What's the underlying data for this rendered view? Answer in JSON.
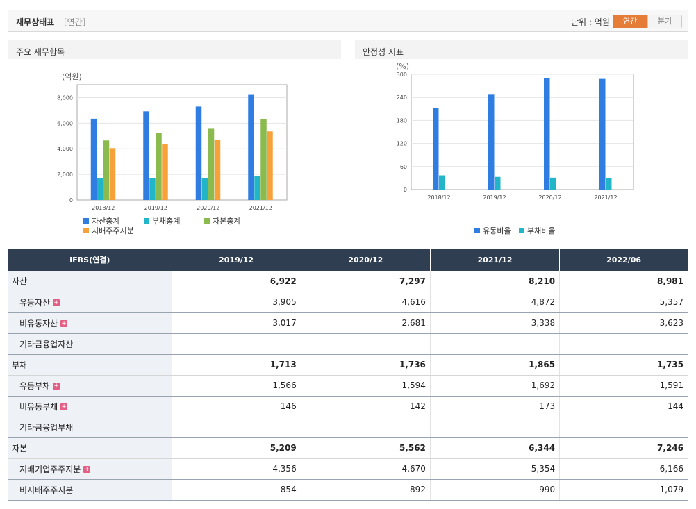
{
  "header": {
    "title": "재무상태표",
    "sub": "[연간]",
    "unit_label": "단위 : 억원",
    "btn_annual": "연간",
    "btn_quarter": "분기"
  },
  "panels": {
    "left_title": "주요 재무항목",
    "right_title": "안정성 지표"
  },
  "chart_data": [
    {
      "type": "bar",
      "title": "주요 재무항목",
      "ylabel": "(억원)",
      "categories": [
        "2018/12",
        "2019/12",
        "2020/12",
        "2021/12"
      ],
      "ylim": [
        0,
        9000
      ],
      "yticks": [
        0,
        2000,
        4000,
        6000,
        8000
      ],
      "ytick_labels": [
        "0",
        "2,000",
        "4,000",
        "6,000",
        "8,000"
      ],
      "series": [
        {
          "name": "자산총계",
          "color": "#2f7de1",
          "values": [
            6350,
            6922,
            7297,
            8210
          ]
        },
        {
          "name": "부채총계",
          "color": "#22b5c8",
          "values": [
            1700,
            1713,
            1736,
            1865
          ]
        },
        {
          "name": "자본총계",
          "color": "#8bbb4e",
          "values": [
            4650,
            5209,
            5562,
            6344
          ]
        },
        {
          "name": "지배주주지분",
          "color": "#f7a13a",
          "values": [
            4050,
            4356,
            4670,
            5354
          ]
        }
      ],
      "legend": "bottom",
      "grid": true
    },
    {
      "type": "bar",
      "title": "안정성 지표",
      "ylabel": "(%)",
      "categories": [
        "2018/12",
        "2019/12",
        "2020/12",
        "2021/12"
      ],
      "ylim": [
        0,
        300
      ],
      "yticks": [
        0,
        60,
        120,
        180,
        240,
        300
      ],
      "ytick_labels": [
        "0",
        "60",
        "120",
        "180",
        "240",
        "300"
      ],
      "series": [
        {
          "name": "유동비율",
          "color": "#2f7de1",
          "values": [
            212,
            247,
            290,
            288
          ]
        },
        {
          "name": "부채비율",
          "color": "#22b5c8",
          "values": [
            37,
            33,
            31,
            29
          ]
        }
      ],
      "legend": "bottom",
      "grid": true
    }
  ],
  "table": {
    "header": [
      "IFRS(연결)",
      "2019/12",
      "2020/12",
      "2021/12",
      "2022/06"
    ],
    "rows": [
      {
        "label": "자산",
        "bold": true,
        "sub": false,
        "plus": false,
        "values": [
          "6,922",
          "7,297",
          "8,210",
          "8,981"
        ]
      },
      {
        "label": "유동자산",
        "bold": false,
        "sub": true,
        "plus": true,
        "values": [
          "3,905",
          "4,616",
          "4,872",
          "5,357"
        ]
      },
      {
        "label": "비유동자산",
        "bold": false,
        "sub": true,
        "plus": true,
        "values": [
          "3,017",
          "2,681",
          "3,338",
          "3,623"
        ]
      },
      {
        "label": "기타금융업자산",
        "bold": false,
        "sub": true,
        "plus": false,
        "values": [
          "",
          "",
          "",
          ""
        ]
      },
      {
        "label": "부채",
        "bold": true,
        "sub": false,
        "plus": false,
        "values": [
          "1,713",
          "1,736",
          "1,865",
          "1,735"
        ]
      },
      {
        "label": "유동부채",
        "bold": false,
        "sub": true,
        "plus": true,
        "values": [
          "1,566",
          "1,594",
          "1,692",
          "1,591"
        ]
      },
      {
        "label": "비유동부채",
        "bold": false,
        "sub": true,
        "plus": true,
        "values": [
          "146",
          "142",
          "173",
          "144"
        ]
      },
      {
        "label": "기타금융업부채",
        "bold": false,
        "sub": true,
        "plus": false,
        "values": [
          "",
          "",
          "",
          ""
        ]
      },
      {
        "label": "자본",
        "bold": true,
        "sub": false,
        "plus": false,
        "values": [
          "5,209",
          "5,562",
          "6,344",
          "7,246"
        ]
      },
      {
        "label": "지배기업주주지분",
        "bold": false,
        "sub": true,
        "plus": true,
        "values": [
          "4,356",
          "4,670",
          "5,354",
          "6,166"
        ]
      },
      {
        "label": "비지배주주지분",
        "bold": false,
        "sub": true,
        "plus": false,
        "values": [
          "854",
          "892",
          "990",
          "1,079"
        ]
      }
    ]
  }
}
